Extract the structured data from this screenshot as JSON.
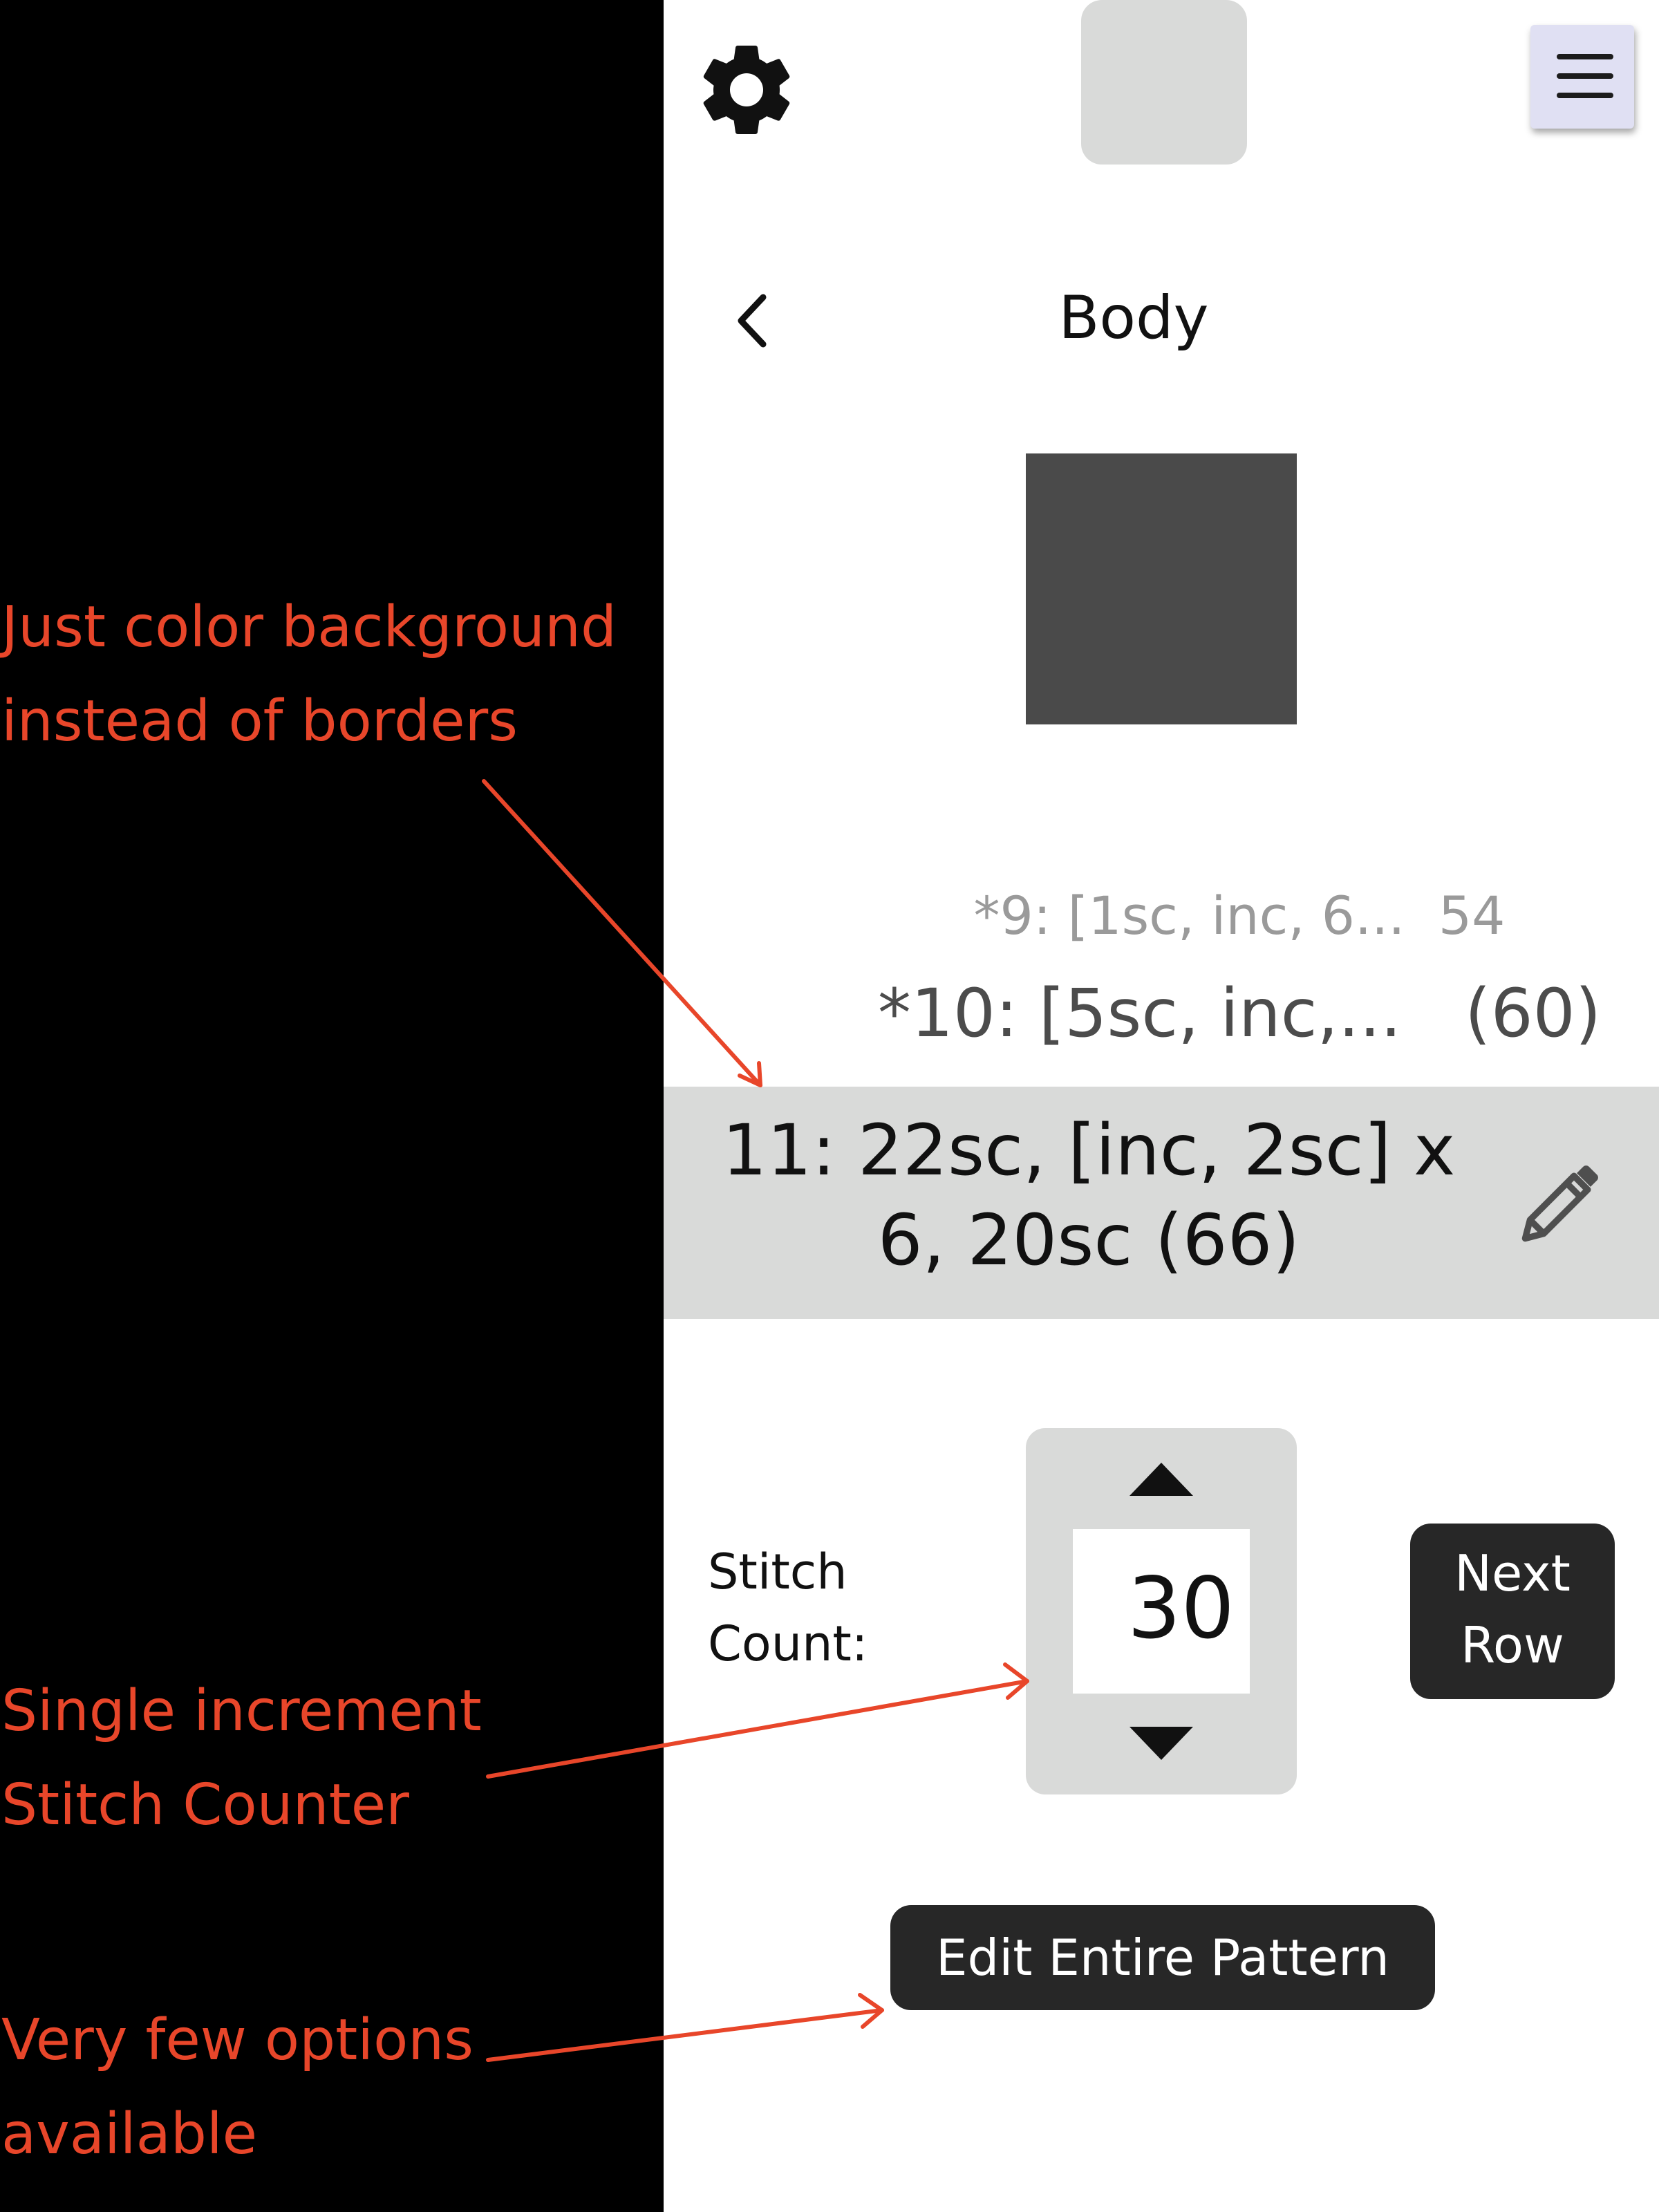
{
  "screen": {
    "title": "Body",
    "rows": {
      "prev2": "*9: [1sc, inc, 6...  54",
      "prev1": "*10: [5sc, inc,...   (60)",
      "current_line1": "11: 22sc, [inc, 2sc] x",
      "current_line2": "6, 20sc (66)"
    },
    "stitch_label_line1": "Stitch",
    "stitch_label_line2": "Count:",
    "stitch_count": "30",
    "next_row_line1": "Next",
    "next_row_line2": "Row",
    "edit_pattern_label": "Edit Entire Pattern"
  },
  "annotations": {
    "note1_line1": "Just color background",
    "note1_line2": "instead of borders",
    "note2_line1": "Single increment",
    "note2_line2": "Stitch Counter",
    "note3_line1": "Very few options",
    "note3_line2": "available"
  },
  "colors": {
    "annotation": "#e8462a",
    "panel": "#d9dad9",
    "button": "#272727",
    "menu_button": "#e0e0f3"
  },
  "icons": {
    "settings": "gear-icon",
    "menu": "hamburger-icon",
    "back": "chevron-left-icon",
    "edit": "pencil-icon",
    "increment": "triangle-up-icon",
    "decrement": "triangle-down-icon"
  }
}
